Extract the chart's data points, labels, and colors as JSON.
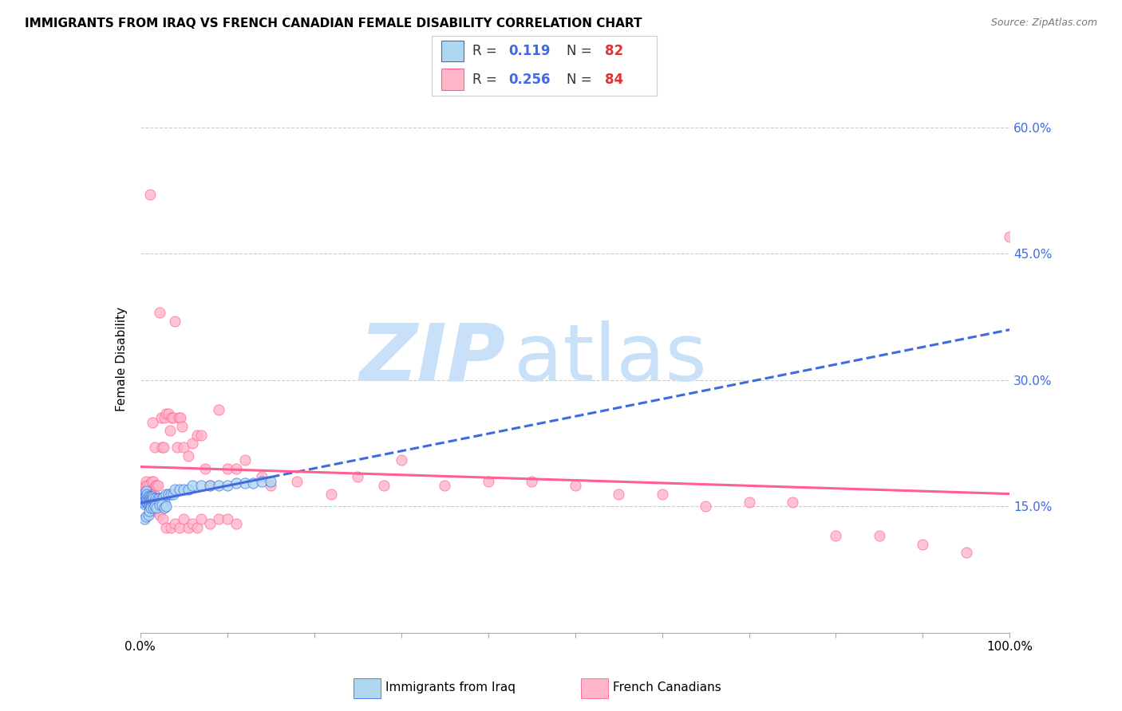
{
  "title": "IMMIGRANTS FROM IRAQ VS FRENCH CANADIAN FEMALE DISABILITY CORRELATION CHART",
  "source": "Source: ZipAtlas.com",
  "ylabel": "Female Disability",
  "ytick_labels": [
    "15.0%",
    "30.0%",
    "45.0%",
    "60.0%"
  ],
  "ytick_values": [
    0.15,
    0.3,
    0.45,
    0.6
  ],
  "xlim": [
    0.0,
    1.0
  ],
  "ylim": [
    0.0,
    0.65
  ],
  "legend_R1": "0.119",
  "legend_N1": "82",
  "legend_R2": "0.256",
  "legend_N2": "84",
  "series1_color": "#ADD8F0",
  "series2_color": "#FFB6C8",
  "trend1_color": "#4169E1",
  "trend2_color": "#FF6090",
  "watermark_zip": "ZIP",
  "watermark_atlas": "atlas",
  "watermark_color_zip": "#C8E0F8",
  "watermark_color_atlas": "#C8E0F8",
  "legend_label1": "Immigrants from Iraq",
  "legend_label2": "French Canadians",
  "series1_x": [
    0.001,
    0.002,
    0.002,
    0.003,
    0.003,
    0.003,
    0.004,
    0.004,
    0.004,
    0.005,
    0.005,
    0.005,
    0.005,
    0.006,
    0.006,
    0.006,
    0.007,
    0.007,
    0.007,
    0.007,
    0.008,
    0.008,
    0.008,
    0.009,
    0.009,
    0.009,
    0.01,
    0.01,
    0.01,
    0.011,
    0.011,
    0.012,
    0.012,
    0.013,
    0.013,
    0.014,
    0.014,
    0.015,
    0.015,
    0.016,
    0.017,
    0.018,
    0.018,
    0.019,
    0.02,
    0.02,
    0.021,
    0.022,
    0.023,
    0.025,
    0.027,
    0.028,
    0.03,
    0.032,
    0.035,
    0.038,
    0.04,
    0.045,
    0.05,
    0.055,
    0.06,
    0.07,
    0.08,
    0.09,
    0.1,
    0.11,
    0.12,
    0.13,
    0.14,
    0.15,
    0.005,
    0.007,
    0.009,
    0.01,
    0.012,
    0.015,
    0.017,
    0.019,
    0.022,
    0.025,
    0.028,
    0.03
  ],
  "series1_y": [
    0.155,
    0.155,
    0.16,
    0.155,
    0.16,
    0.165,
    0.155,
    0.158,
    0.162,
    0.155,
    0.158,
    0.162,
    0.165,
    0.152,
    0.158,
    0.163,
    0.155,
    0.16,
    0.163,
    0.168,
    0.155,
    0.16,
    0.165,
    0.152,
    0.158,
    0.163,
    0.15,
    0.155,
    0.162,
    0.152,
    0.16,
    0.155,
    0.162,
    0.152,
    0.16,
    0.155,
    0.162,
    0.152,
    0.16,
    0.155,
    0.155,
    0.15,
    0.16,
    0.155,
    0.152,
    0.16,
    0.155,
    0.16,
    0.155,
    0.16,
    0.162,
    0.155,
    0.165,
    0.165,
    0.165,
    0.165,
    0.17,
    0.17,
    0.17,
    0.17,
    0.175,
    0.175,
    0.175,
    0.175,
    0.175,
    0.178,
    0.178,
    0.178,
    0.18,
    0.18,
    0.135,
    0.138,
    0.14,
    0.145,
    0.148,
    0.148,
    0.15,
    0.148,
    0.152,
    0.152,
    0.148,
    0.15
  ],
  "series2_x": [
    0.002,
    0.003,
    0.004,
    0.005,
    0.006,
    0.007,
    0.008,
    0.009,
    0.01,
    0.011,
    0.012,
    0.013,
    0.014,
    0.015,
    0.016,
    0.017,
    0.018,
    0.019,
    0.02,
    0.022,
    0.024,
    0.025,
    0.027,
    0.028,
    0.03,
    0.032,
    0.034,
    0.036,
    0.038,
    0.04,
    0.042,
    0.044,
    0.046,
    0.048,
    0.05,
    0.055,
    0.06,
    0.065,
    0.07,
    0.075,
    0.08,
    0.09,
    0.1,
    0.11,
    0.12,
    0.14,
    0.15,
    0.18,
    0.22,
    0.25,
    0.28,
    0.3,
    0.35,
    0.4,
    0.45,
    0.5,
    0.55,
    0.6,
    0.65,
    0.7,
    0.75,
    0.8,
    0.85,
    0.9,
    0.95,
    1.0,
    0.013,
    0.015,
    0.018,
    0.022,
    0.026,
    0.03,
    0.035,
    0.04,
    0.045,
    0.05,
    0.055,
    0.06,
    0.065,
    0.07,
    0.08,
    0.09,
    0.1,
    0.11
  ],
  "series2_y": [
    0.165,
    0.165,
    0.168,
    0.17,
    0.175,
    0.18,
    0.175,
    0.165,
    0.175,
    0.52,
    0.165,
    0.18,
    0.25,
    0.18,
    0.165,
    0.22,
    0.175,
    0.175,
    0.175,
    0.38,
    0.255,
    0.22,
    0.22,
    0.255,
    0.26,
    0.26,
    0.24,
    0.255,
    0.255,
    0.37,
    0.22,
    0.255,
    0.255,
    0.245,
    0.22,
    0.21,
    0.225,
    0.235,
    0.235,
    0.195,
    0.175,
    0.265,
    0.195,
    0.195,
    0.205,
    0.185,
    0.175,
    0.18,
    0.165,
    0.185,
    0.175,
    0.205,
    0.175,
    0.18,
    0.18,
    0.175,
    0.165,
    0.165,
    0.15,
    0.155,
    0.155,
    0.115,
    0.115,
    0.105,
    0.095,
    0.47,
    0.155,
    0.155,
    0.145,
    0.14,
    0.135,
    0.125,
    0.125,
    0.13,
    0.125,
    0.135,
    0.125,
    0.13,
    0.125,
    0.135,
    0.13,
    0.135,
    0.135,
    0.13
  ]
}
